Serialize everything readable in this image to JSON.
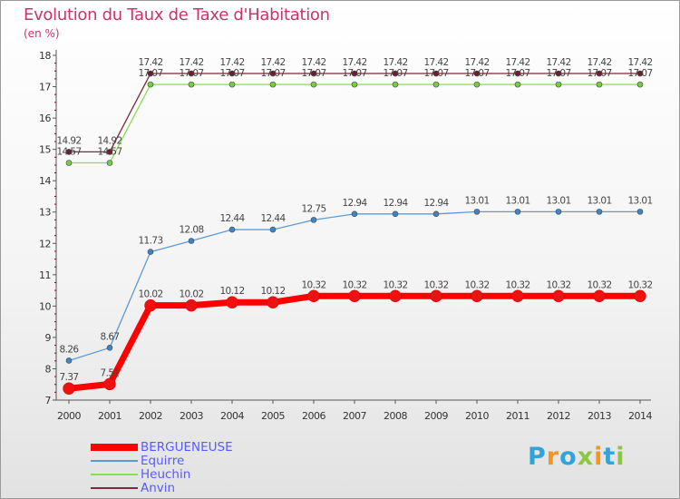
{
  "chart_data": {
    "type": "line",
    "title": "Evolution du Taux de Taxe d'Habitation",
    "subtitle": "(en %)",
    "xlabel": "",
    "ylabel": "",
    "categories": [
      "2000",
      "2001",
      "2002",
      "2003",
      "2004",
      "2005",
      "2006",
      "2007",
      "2008",
      "2009",
      "2010",
      "2011",
      "2012",
      "2013",
      "2014"
    ],
    "ylim": [
      7,
      18
    ],
    "yticks": [
      7,
      8,
      9,
      10,
      11,
      12,
      13,
      14,
      15,
      16,
      17,
      18
    ],
    "grid": false,
    "legend_position": "bottom-left",
    "series": [
      {
        "name": "BERGUENEUSE",
        "color": "#ff0000",
        "marker": "#ee1111",
        "values": [
          7.37,
          7.51,
          10.02,
          10.02,
          10.12,
          10.12,
          10.32,
          10.32,
          10.32,
          10.32,
          10.32,
          10.32,
          10.32,
          10.32,
          10.32
        ],
        "labels": [
          "7.37",
          "7.51",
          "10.02",
          "10.02",
          "10.12",
          "10.12",
          "10.32",
          "10.32",
          "10.32",
          "10.32",
          "10.32",
          "10.32",
          "10.32",
          "10.32",
          "10.32"
        ]
      },
      {
        "name": "Equirre",
        "color": "#5b9bd5",
        "marker": "#3d85c6",
        "values": [
          8.26,
          8.67,
          11.73,
          12.08,
          12.44,
          12.44,
          12.75,
          12.94,
          12.94,
          12.94,
          13.01,
          13.01,
          13.01,
          13.01,
          13.01
        ],
        "labels": [
          "8.26",
          "8.67",
          "11.73",
          "12.08",
          "12.44",
          "12.44",
          "12.75",
          "12.94",
          "12.94",
          "12.94",
          "13.01",
          "13.01",
          "13.01",
          "13.01",
          "13.01"
        ]
      },
      {
        "name": "Heuchin",
        "color": "#88dd55",
        "marker": "#77cc44",
        "values": [
          14.57,
          14.57,
          17.07,
          17.07,
          17.07,
          17.07,
          17.07,
          17.07,
          17.07,
          17.07,
          17.07,
          17.07,
          17.07,
          17.07,
          17.07
        ],
        "labels": [
          "14.57",
          "14.57",
          "17.07",
          "17.07",
          "17.07",
          "17.07",
          "17.07",
          "17.07",
          "17.07",
          "17.07",
          "17.07",
          "17.07",
          "17.07",
          "17.07",
          "17.07"
        ]
      },
      {
        "name": "Anvin",
        "color": "#7a2a3a",
        "marker": "#6b1f2e",
        "values": [
          14.92,
          14.92,
          17.42,
          17.42,
          17.42,
          17.42,
          17.42,
          17.42,
          17.42,
          17.42,
          17.42,
          17.42,
          17.42,
          17.42,
          17.42
        ],
        "labels": [
          "14.92",
          "14.92",
          "17.42",
          "17.42",
          "17.42",
          "17.42",
          "17.42",
          "17.42",
          "17.42",
          "17.42",
          "17.42",
          "17.42",
          "17.42",
          "17.42",
          "17.42"
        ]
      }
    ]
  },
  "logo": {
    "letters": [
      "P",
      "r",
      "o",
      "x",
      "i",
      "t",
      "i"
    ],
    "colors": [
      "#33a3dc",
      "#f7941d",
      "#33a3dc",
      "#8dc63f",
      "#f7941d",
      "#33a3dc",
      "#8dc63f"
    ]
  }
}
